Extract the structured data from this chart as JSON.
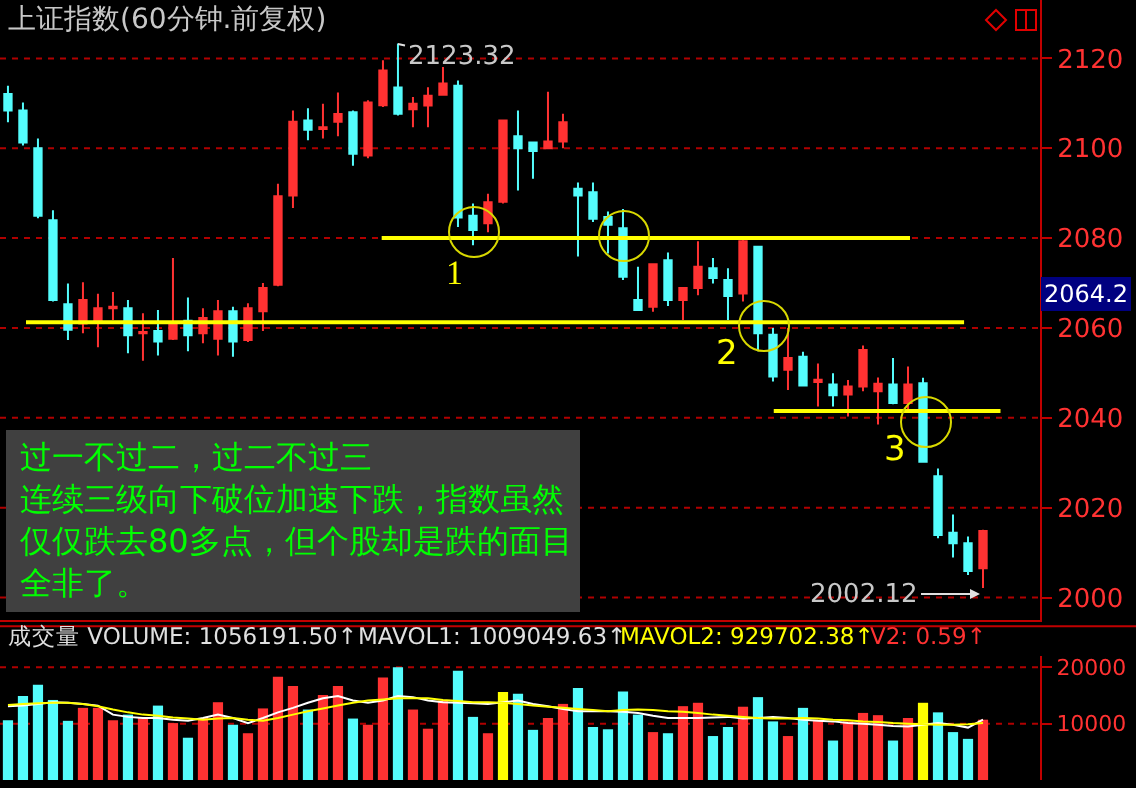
{
  "chart_data": [
    {
      "type": "candlestick",
      "title": "上证指数(60分钟.前复权)",
      "tick_labels": "y",
      "grid": "y",
      "categories": [
        null,
        null,
        null,
        null,
        null,
        null,
        null,
        null,
        null,
        null,
        null,
        null,
        null,
        null,
        null,
        null,
        null,
        null,
        null,
        null,
        null,
        null,
        null,
        null,
        null,
        null,
        null,
        null,
        null,
        null,
        null,
        null,
        null,
        null,
        null,
        null,
        null,
        null,
        null,
        null,
        null,
        null,
        null,
        null,
        null,
        null,
        null,
        null,
        null,
        null,
        null,
        null,
        null,
        null,
        null,
        null,
        null,
        null,
        null,
        null,
        null,
        null,
        null,
        null,
        null,
        null
      ],
      "ohlc": [
        [
          2112.1,
          2113.9,
          2105.8,
          2108.4
        ],
        [
          2108.4,
          2110.2,
          2100.6,
          2101.3
        ],
        [
          2100.0,
          2102.2,
          2084.4,
          2085.0
        ],
        [
          2084.0,
          2086.2,
          2065.9,
          2066.2
        ],
        [
          2065.3,
          2069.9,
          2057.3,
          2059.6
        ],
        [
          2061.0,
          2070.2,
          2058.8,
          2066.2
        ],
        [
          2061.8,
          2067.6,
          2055.7,
          2064.4
        ],
        [
          2064.4,
          2068.0,
          2061.8,
          2064.7
        ],
        [
          2064.4,
          2066.2,
          2054.4,
          2058.4
        ],
        [
          2058.8,
          2063.3,
          2052.7,
          2059.1
        ],
        [
          2059.3,
          2064.0,
          2053.9,
          2057.0
        ],
        [
          2057.6,
          2075.6,
          2057.3,
          2060.7
        ],
        [
          2061.6,
          2066.8,
          2054.8,
          2058.4
        ],
        [
          2058.8,
          2064.4,
          2056.6,
          2062.2
        ],
        [
          2057.6,
          2066.2,
          2053.9,
          2063.7
        ],
        [
          2063.7,
          2064.7,
          2053.6,
          2057.0
        ],
        [
          2057.3,
          2065.5,
          2056.9,
          2064.4
        ],
        [
          2063.7,
          2070.0,
          2059.3,
          2068.9
        ],
        [
          2069.6,
          2092.1,
          2069.3,
          2089.3
        ],
        [
          2089.5,
          2108.4,
          2086.7,
          2105.9
        ],
        [
          2106.2,
          2108.9,
          2101.8,
          2104.1
        ],
        [
          2104.3,
          2109.9,
          2102.2,
          2104.7
        ],
        [
          2105.9,
          2112.4,
          2102.7,
          2107.6
        ],
        [
          2108.0,
          2108.4,
          2096.1,
          2098.8
        ],
        [
          2098.4,
          2110.7,
          2097.8,
          2110.2
        ],
        [
          2109.6,
          2119.6,
          2109.2,
          2117.3
        ],
        [
          2113.5,
          2123.32,
          2107.3,
          2107.7
        ],
        [
          2108.7,
          2111.4,
          2104.7,
          2109.9
        ],
        [
          2109.5,
          2113.6,
          2104.7,
          2111.7
        ],
        [
          2111.9,
          2118.1,
          2111.9,
          2114.4
        ],
        [
          2113.9,
          2115.1,
          2082.5,
          2084.6
        ],
        [
          2085.0,
          2087.7,
          2078.4,
          2081.8
        ],
        [
          2083.3,
          2089.9,
          2081.3,
          2088.0
        ],
        [
          2088.1,
          2106.2,
          2087.7,
          2106.2
        ],
        [
          2102.7,
          2108.4,
          2090.6,
          2100.0
        ],
        [
          2101.3,
          2101.5,
          2093.2,
          2099.4
        ],
        [
          2100.0,
          2112.6,
          2100.0,
          2101.5
        ],
        [
          2101.5,
          2107.7,
          2100.0,
          2105.8
        ],
        [
          2091.0,
          2092.4,
          2075.9,
          2089.5
        ],
        [
          2090.2,
          2092.4,
          2083.6,
          2084.3
        ],
        [
          2084.7,
          2085.9,
          2076.6,
          2083.0
        ],
        [
          2082.2,
          2086.5,
          2070.7,
          2071.4
        ],
        [
          2066.2,
          2073.6,
          2064.0,
          2064.0
        ],
        [
          2064.7,
          2074.2,
          2063.6,
          2074.2
        ],
        [
          2075.1,
          2076.8,
          2064.9,
          2066.2
        ],
        [
          2066.2,
          2068.9,
          2061.8,
          2068.9
        ],
        [
          2068.9,
          2079.3,
          2067.3,
          2073.6
        ],
        [
          2073.3,
          2075.6,
          2069.9,
          2071.1
        ],
        [
          2070.7,
          2073.3,
          2061.8,
          2067.1
        ],
        [
          2067.7,
          2080.0,
          2065.9,
          2079.3
        ],
        [
          2078.1,
          2078.1,
          2054.8,
          2058.8
        ],
        [
          2058.5,
          2060.0,
          2048.1,
          2049.2
        ],
        [
          2050.7,
          2060.0,
          2046.2,
          2053.3
        ],
        [
          2053.6,
          2054.7,
          2047.0,
          2047.2
        ],
        [
          2048.0,
          2052.1,
          2042.5,
          2048.5
        ],
        [
          2047.4,
          2049.9,
          2042.5,
          2045.0
        ],
        [
          2045.2,
          2048.4,
          2040.3,
          2047.0
        ],
        [
          2047.0,
          2056.1,
          2045.9,
          2055.1
        ],
        [
          2045.9,
          2049.0,
          2038.5,
          2047.6
        ],
        [
          2047.4,
          2053.3,
          2043.0,
          2043.3
        ],
        [
          2043.3,
          2051.4,
          2041.8,
          2047.4
        ],
        [
          2047.7,
          2048.9,
          2030.0,
          2030.2
        ],
        [
          2027.0,
          2028.7,
          2013.2,
          2013.9
        ],
        [
          2014.4,
          2018.5,
          2008.9,
          2012.1
        ],
        [
          2012.1,
          2013.6,
          2005.0,
          2005.9
        ],
        [
          2006.5,
          2015.1,
          2002.12,
          2014.8
        ]
      ],
      "ylim": [
        1995,
        2133
      ],
      "yticks": [
        2000,
        2020,
        2040,
        2060,
        2080,
        2100,
        2120
      ],
      "ref_lines": [
        {
          "axis": "y",
          "value": 2080,
          "color": "#ffff00"
        },
        {
          "axis": "y",
          "value": 2061.3,
          "color": "#ffff00"
        },
        {
          "axis": "y",
          "value": 2041.5,
          "color": "#ffff00"
        }
      ],
      "annotations": [
        "2123.32",
        "2002.12",
        "2064.2",
        "1",
        "2",
        "3",
        "过一不过二，过二不过三",
        "连续三级向下破位加速下跌，指数虽然",
        "仅仅跌去80多点，但个股却是跌的面目",
        "全非了。"
      ]
    },
    {
      "type": "bar",
      "tick_labels": "y",
      "grid": "y",
      "categories": [
        null,
        null,
        null,
        null,
        null,
        null,
        null,
        null,
        null,
        null,
        null,
        null,
        null,
        null,
        null,
        null,
        null,
        null,
        null,
        null,
        null,
        null,
        null,
        null,
        null,
        null,
        null,
        null,
        null,
        null,
        null,
        null,
        null,
        null,
        null,
        null,
        null,
        null,
        null,
        null,
        null,
        null,
        null,
        null,
        null,
        null,
        null,
        null,
        null,
        null,
        null,
        null,
        null,
        null,
        null,
        null,
        null,
        null,
        null,
        null,
        null,
        null,
        null,
        null,
        null,
        null
      ],
      "values": [
        10600,
        14900,
        16900,
        14200,
        10500,
        12800,
        12800,
        10600,
        11600,
        11000,
        13200,
        10100,
        7500,
        11000,
        13800,
        9800,
        8300,
        12700,
        18300,
        16700,
        12500,
        15100,
        16700,
        10900,
        9800,
        18200,
        20000,
        12500,
        9100,
        14100,
        19400,
        11200,
        8300,
        15600,
        15300,
        8900,
        11000,
        13500,
        16300,
        9400,
        9000,
        15700,
        11600,
        8500,
        8300,
        13100,
        13700,
        7800,
        9400,
        13000,
        14700,
        10400,
        7800,
        12800,
        10700,
        7000,
        10400,
        11900,
        11500,
        7000,
        11000,
        13700,
        12000,
        8500,
        7300,
        10700
      ],
      "colors": [
        "#54fcfc",
        "#54fcfc",
        "#54fcfc",
        "#54fcfc",
        "#54fcfc",
        "#ff3232",
        "#ff3232",
        "#ff3232",
        "#54fcfc",
        "#ff3232",
        "#54fcfc",
        "#ff3232",
        "#54fcfc",
        "#ff3232",
        "#ff3232",
        "#54fcfc",
        "#ff3232",
        "#ff3232",
        "#ff3232",
        "#ff3232",
        "#54fcfc",
        "#ff3232",
        "#ff3232",
        "#54fcfc",
        "#ff3232",
        "#ff3232",
        "#54fcfc",
        "#ff3232",
        "#ff3232",
        "#ff3232",
        "#54fcfc",
        "#54fcfc",
        "#ff3232",
        "#ffff00",
        "#54fcfc",
        "#54fcfc",
        "#ff3232",
        "#ff3232",
        "#54fcfc",
        "#54fcfc",
        "#54fcfc",
        "#54fcfc",
        "#54fcfc",
        "#ff3232",
        "#54fcfc",
        "#ff3232",
        "#ff3232",
        "#54fcfc",
        "#54fcfc",
        "#ff3232",
        "#54fcfc",
        "#54fcfc",
        "#ff3232",
        "#54fcfc",
        "#ff3232",
        "#54fcfc",
        "#ff3232",
        "#ff3232",
        "#ff3232",
        "#54fcfc",
        "#ff3232",
        "#ffff00",
        "#54fcfc",
        "#54fcfc",
        "#54fcfc",
        "#ff3232"
      ],
      "series": [
        {
          "type": "line",
          "color": "#ffffff",
          "values": [
            13100,
            13200,
            13500,
            13800,
            13700,
            13500,
            13200,
            11600,
            11200,
            11000,
            11000,
            10700,
            10500,
            11000,
            11600,
            11000,
            10100,
            11000,
            12000,
            12800,
            13700,
            14500,
            14900,
            14100,
            13700,
            14100,
            14900,
            14700,
            14100,
            13800,
            13700,
            13600,
            13500,
            13800,
            14100,
            13500,
            13100,
            12600,
            12200,
            12200,
            12200,
            12100,
            11900,
            11400,
            11000,
            11000,
            11000,
            11100,
            11200,
            10900,
            11000,
            11200,
            11000,
            10700,
            10500,
            10400,
            10100,
            10000,
            9800,
            9600,
            9500,
            9800,
            10100,
            9800,
            9300,
            10700
          ]
        },
        {
          "type": "line",
          "color": "#ffff00",
          "values": [
            13300,
            13500,
            13600,
            13700,
            13700,
            13500,
            13100,
            12500,
            12000,
            11600,
            11400,
            11100,
            10900,
            10700,
            10900,
            11000,
            10700,
            10500,
            11000,
            11600,
            12200,
            12700,
            13200,
            13700,
            14100,
            14300,
            14500,
            14500,
            14500,
            14200,
            14000,
            13800,
            13800,
            13700,
            13500,
            13200,
            13000,
            12800,
            12600,
            12400,
            12200,
            12400,
            12500,
            12400,
            12200,
            12100,
            11900,
            11600,
            11400,
            11200,
            11000,
            10900,
            10900,
            11000,
            10900,
            10700,
            10600,
            10400,
            10300,
            10100,
            10000,
            9900,
            9800,
            9800,
            9900,
            10100
          ]
        }
      ],
      "ylim": [
        0,
        22000
      ],
      "yticks": [
        10000,
        20000
      ],
      "annotations": [
        "成交量 VOLUME: 1056191.50↑",
        "MAVOL1: 1009049.63↑",
        "MAVOL2: 929702.38↑",
        "V2: 0.59↑"
      ]
    }
  ]
}
